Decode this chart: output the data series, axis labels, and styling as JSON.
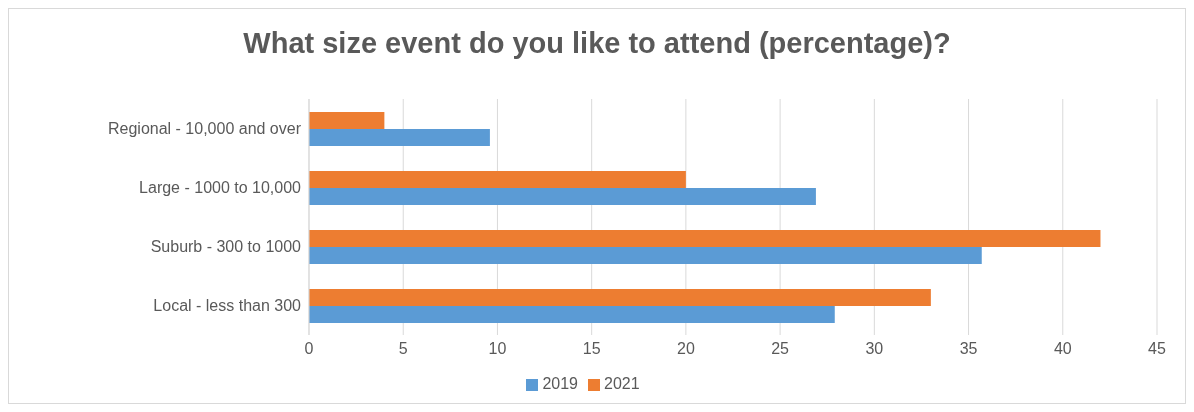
{
  "chart_data": {
    "type": "bar",
    "orientation": "horizontal",
    "title": "What size event do you like to attend (percentage)?",
    "categories": [
      "Regional - 10,000 and over",
      "Large - 1000 to 10,000",
      "Suburb - 300 to 1000",
      "Local - less than 300"
    ],
    "series": [
      {
        "name": "2021",
        "color": "#ed7d31",
        "values": [
          4,
          20,
          42,
          33
        ]
      },
      {
        "name": "2019",
        "color": "#5b9bd5",
        "values": [
          9.6,
          26.9,
          35.7,
          27.9
        ]
      }
    ],
    "xlim": [
      0,
      45
    ],
    "xticks": [
      0,
      5,
      10,
      15,
      20,
      25,
      30,
      35,
      40,
      45
    ],
    "grid": "x",
    "legend": "bottom"
  }
}
